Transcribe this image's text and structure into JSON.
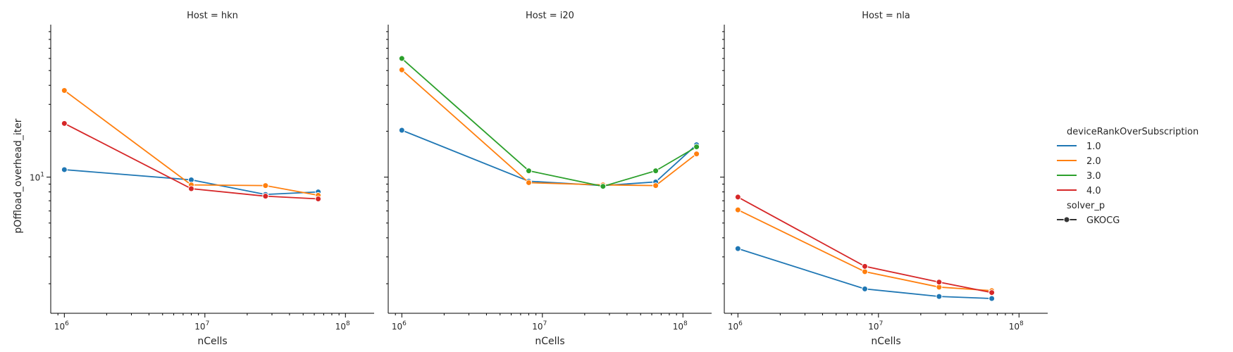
{
  "chart_data": {
    "type": "line",
    "xlabel": "nCells",
    "ylabel": "pOffload_overhead_iter",
    "x_scale": "log",
    "y_scale": "log",
    "xlim": [
      800000,
      160000000
    ],
    "ylim": [
      1.28,
      100
    ],
    "grid": false,
    "x_ticks": [
      {
        "value": 1000000,
        "label": "10",
        "exp": "6"
      },
      {
        "value": 10000000,
        "label": "10",
        "exp": "7"
      },
      {
        "value": 100000000,
        "label": "10",
        "exp": "8"
      }
    ],
    "y_ticks": [
      {
        "value": 10,
        "label": "10",
        "exp": "1"
      }
    ],
    "legend": {
      "placement": "right",
      "hue_title": "deviceRankOverSubscription",
      "hue_entries": [
        {
          "label": "1.0",
          "color": "#1f77b4"
        },
        {
          "label": "2.0",
          "color": "#ff7f0e"
        },
        {
          "label": "3.0",
          "color": "#2ca02c"
        },
        {
          "label": "4.0",
          "color": "#d62728"
        }
      ],
      "style_title": "solver_p",
      "style_entries": [
        {
          "label": "GKOCG",
          "color": "#333333"
        }
      ]
    },
    "panels": [
      {
        "title": "Host = hkn",
        "series": [
          {
            "name": "1.0",
            "color": "#1f77b4",
            "x": [
              1000000,
              8000000,
              27000000,
              64000000
            ],
            "y": [
              11.2,
              9.6,
              7.7,
              8.0
            ]
          },
          {
            "name": "2.0",
            "color": "#ff7f0e",
            "x": [
              1000000,
              8000000,
              27000000,
              64000000
            ],
            "y": [
              37,
              8.9,
              8.8,
              7.6
            ]
          },
          {
            "name": "4.0",
            "color": "#d62728",
            "x": [
              1000000,
              8000000,
              27000000,
              64000000
            ],
            "y": [
              22.5,
              8.4,
              7.5,
              7.2
            ]
          }
        ]
      },
      {
        "title": "Host = i20",
        "series": [
          {
            "name": "1.0",
            "color": "#1f77b4",
            "x": [
              1000000,
              8000000,
              27000000,
              64000000,
              125000000
            ],
            "y": [
              20.3,
              9.4,
              8.8,
              9.3,
              16.3
            ]
          },
          {
            "name": "2.0",
            "color": "#ff7f0e",
            "x": [
              1000000,
              8000000,
              27000000,
              64000000,
              125000000
            ],
            "y": [
              50.5,
              9.2,
              8.9,
              8.8,
              14.2
            ]
          },
          {
            "name": "3.0",
            "color": "#2ca02c",
            "x": [
              1000000,
              8000000,
              27000000,
              64000000,
              125000000
            ],
            "y": [
              60.0,
              11.0,
              8.7,
              11.0,
              15.8
            ]
          }
        ]
      },
      {
        "title": "Host = nla",
        "series": [
          {
            "name": "1.0",
            "color": "#1f77b4",
            "x": [
              1000000,
              8000000,
              27000000,
              64000000
            ],
            "y": [
              3.4,
              1.85,
              1.65,
              1.6
            ]
          },
          {
            "name": "2.0",
            "color": "#ff7f0e",
            "x": [
              1000000,
              8000000,
              27000000,
              64000000
            ],
            "y": [
              6.1,
              2.4,
              1.9,
              1.8
            ]
          },
          {
            "name": "4.0",
            "color": "#d62728",
            "x": [
              1000000,
              8000000,
              27000000,
              64000000
            ],
            "y": [
              7.4,
              2.6,
              2.05,
              1.75
            ]
          }
        ]
      }
    ]
  }
}
